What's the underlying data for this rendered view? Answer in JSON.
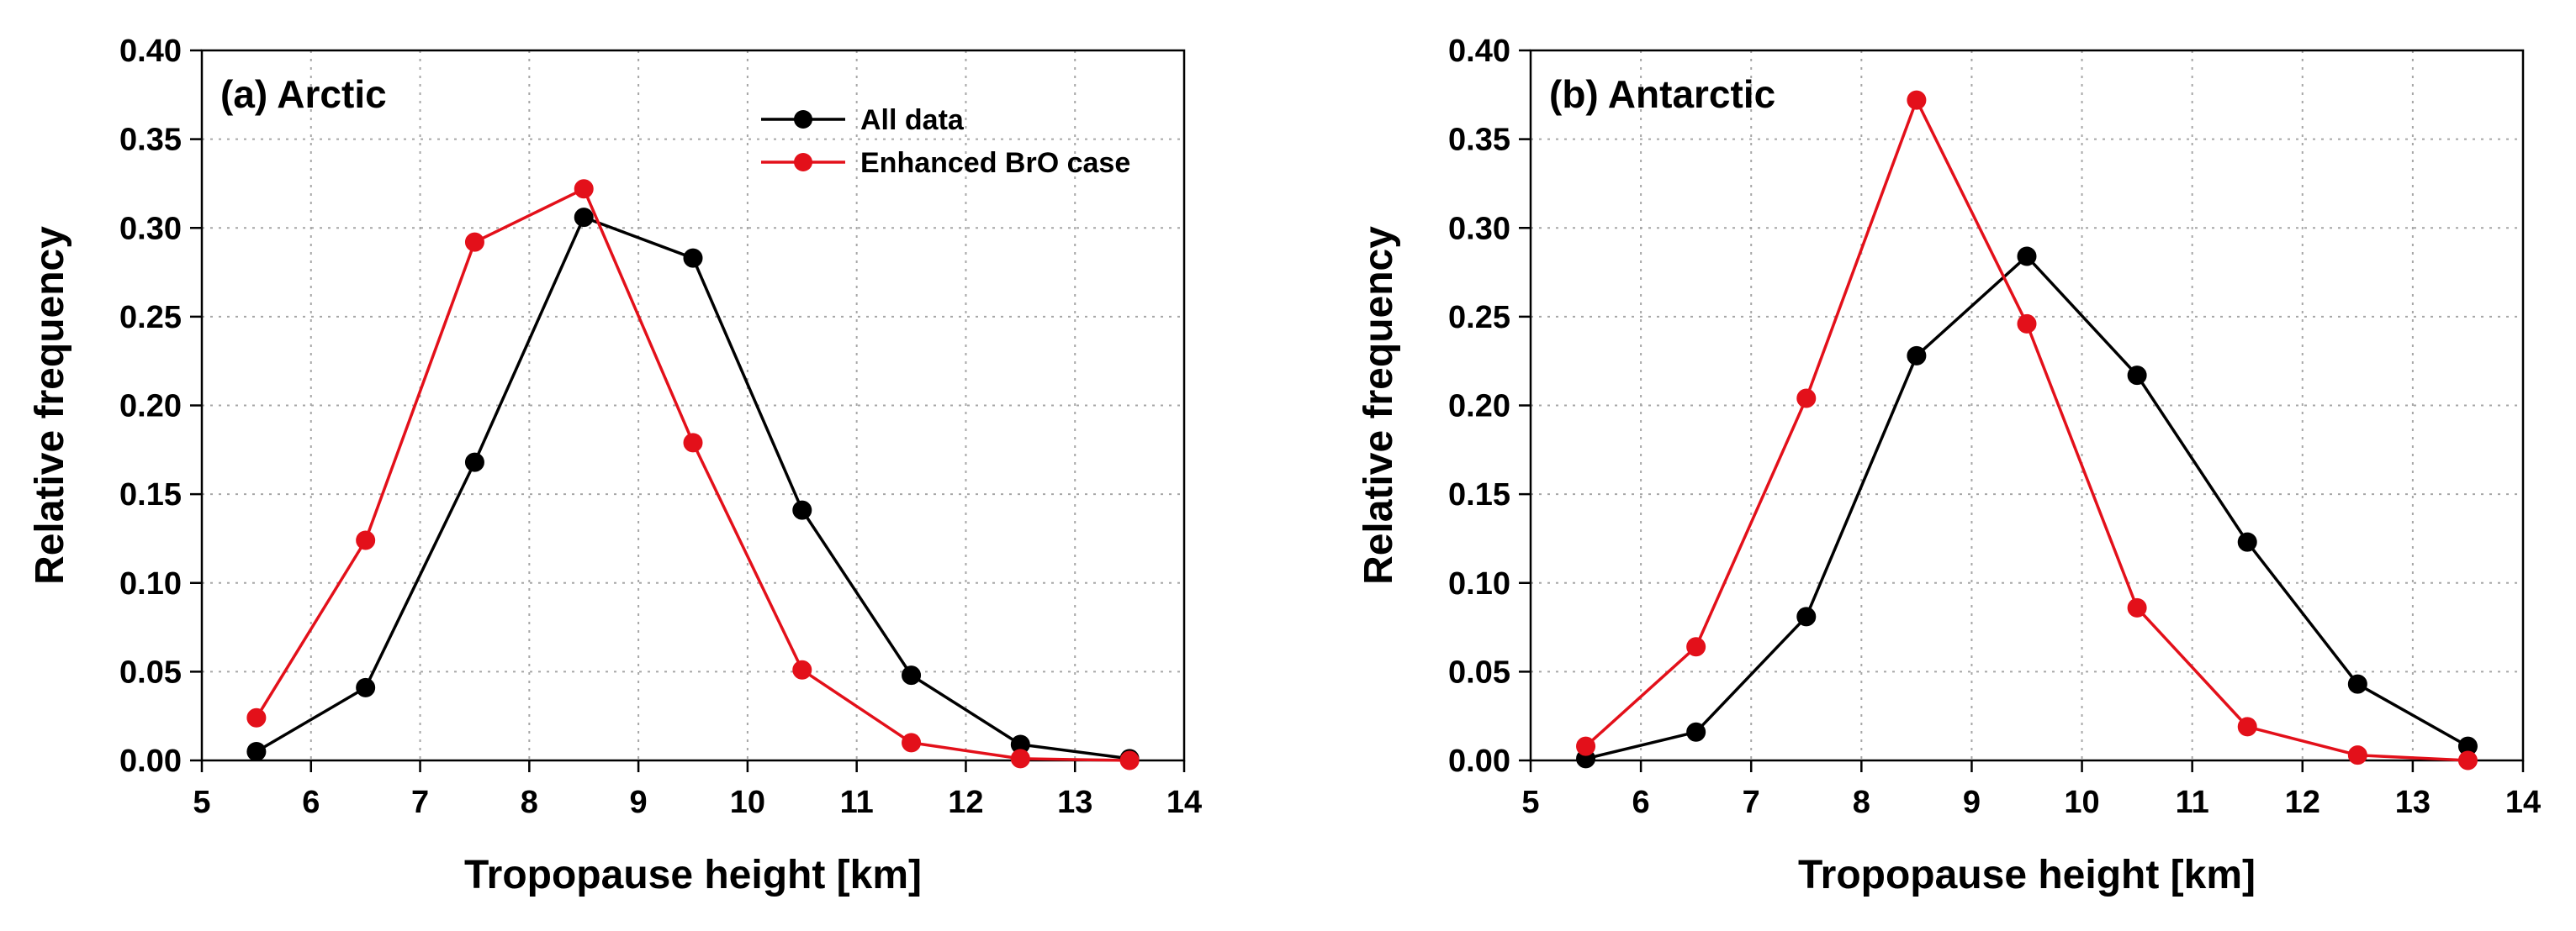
{
  "chart_data": [
    {
      "type": "line",
      "panel_label": "(a) Arctic",
      "xlabel": "Tropopause height [km]",
      "ylabel": "Relative frequency",
      "xlim": [
        5,
        14
      ],
      "ylim": [
        0,
        0.4
      ],
      "x_ticks": [
        "5",
        "6",
        "7",
        "8",
        "9",
        "10",
        "11",
        "12",
        "13",
        "14"
      ],
      "y_ticks": [
        "0.00",
        "0.05",
        "0.10",
        "0.15",
        "0.20",
        "0.25",
        "0.30",
        "0.35",
        "0.40"
      ],
      "grid": true,
      "legend_position": "top-right",
      "x": [
        5.5,
        6.5,
        7.5,
        8.5,
        9.5,
        10.5,
        11.5,
        12.5,
        13.5
      ],
      "series": [
        {
          "name": "All data",
          "color": "#000000",
          "values": [
            0.005,
            0.041,
            0.168,
            0.306,
            0.283,
            0.141,
            0.048,
            0.009,
            0.001
          ]
        },
        {
          "name": "Enhanced BrO case",
          "color": "#e3101a",
          "values": [
            0.024,
            0.124,
            0.292,
            0.322,
            0.179,
            0.051,
            0.01,
            0.001,
            0.0
          ]
        }
      ]
    },
    {
      "type": "line",
      "panel_label": "(b) Antarctic",
      "xlabel": "Tropopause height [km]",
      "ylabel": "Relative frequency",
      "xlim": [
        5,
        14
      ],
      "ylim": [
        0,
        0.4
      ],
      "x_ticks": [
        "5",
        "6",
        "7",
        "8",
        "9",
        "10",
        "11",
        "12",
        "13",
        "14"
      ],
      "y_ticks": [
        "0.00",
        "0.05",
        "0.10",
        "0.15",
        "0.20",
        "0.25",
        "0.30",
        "0.35",
        "0.40"
      ],
      "grid": true,
      "x": [
        5.5,
        6.5,
        7.5,
        8.5,
        9.5,
        10.5,
        11.5,
        12.5,
        13.5
      ],
      "series": [
        {
          "color": "#000000",
          "values": [
            0.001,
            0.016,
            0.081,
            0.228,
            0.284,
            0.217,
            0.123,
            0.043,
            0.008
          ]
        },
        {
          "color": "#e3101a",
          "values": [
            0.008,
            0.064,
            0.204,
            0.372,
            0.246,
            0.086,
            0.019,
            0.003,
            0.0
          ]
        }
      ]
    }
  ]
}
